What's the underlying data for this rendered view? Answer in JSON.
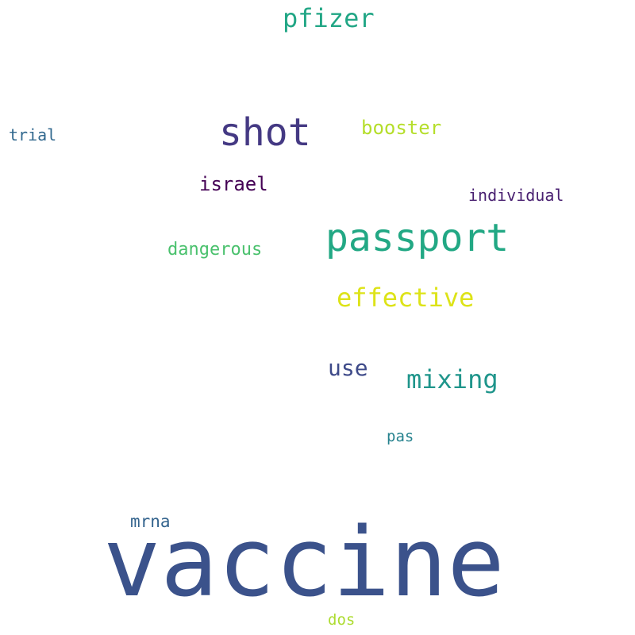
{
  "words": [
    {
      "id": "vaccine",
      "text": "vaccine",
      "color": "#3b528b"
    },
    {
      "id": "passport",
      "text": "passport",
      "color": "#22a884"
    },
    {
      "id": "shot",
      "text": "shot",
      "color": "#443983"
    },
    {
      "id": "pfizer",
      "text": "pfizer",
      "color": "#21a685"
    },
    {
      "id": "effective",
      "text": "effective",
      "color": "#dde318"
    },
    {
      "id": "mixing",
      "text": "mixing",
      "color": "#1f958b"
    },
    {
      "id": "use",
      "text": "use",
      "color": "#3e4a89"
    },
    {
      "id": "booster",
      "text": "booster",
      "color": "#b5de2b"
    },
    {
      "id": "israel",
      "text": "israel",
      "color": "#440154"
    },
    {
      "id": "dangerous",
      "text": "dangerous",
      "color": "#4ac16d"
    },
    {
      "id": "individual",
      "text": "individual",
      "color": "#481f70"
    },
    {
      "id": "mrna",
      "text": "mrna",
      "color": "#33638d"
    },
    {
      "id": "trial",
      "text": "trial",
      "color": "#31688e"
    },
    {
      "id": "pas",
      "text": "pas",
      "color": "#26828e"
    },
    {
      "id": "dos",
      "text": "dos",
      "color": "#addc30"
    }
  ]
}
